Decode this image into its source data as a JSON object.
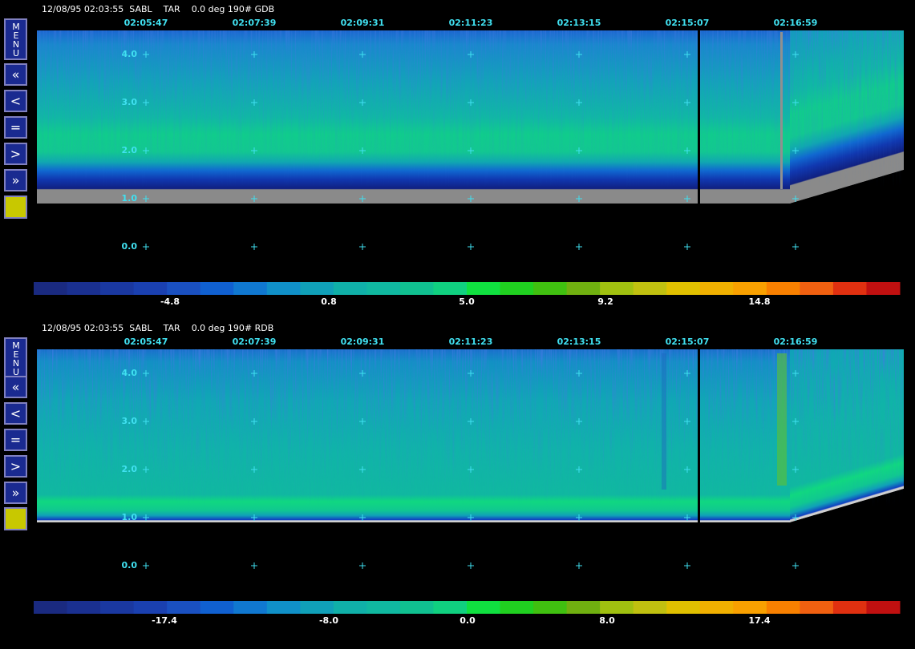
{
  "panels": [
    {
      "header": "12/08/95 02:03:55  SABL    TAR    0.0 deg 190# GDB",
      "times": [
        "02:05:47",
        "02:07:39",
        "02:09:31",
        "02:11:23",
        "02:13:15",
        "02:15:07",
        "02:16:59"
      ],
      "altitudes": [
        "4.0",
        "3.0",
        "2.0",
        "1.0",
        "0.0"
      ],
      "menu": "MENU",
      "buttons": [
        "«",
        "<",
        "=",
        ">",
        "»"
      ],
      "scale": [
        "-4.8",
        "0.8",
        "5.0",
        "9.2",
        "14.8"
      ]
    },
    {
      "header": "12/08/95 02:03:55  SABL    TAR    0.0 deg 190# RDB",
      "times": [
        "02:05:47",
        "02:07:39",
        "02:09:31",
        "02:11:23",
        "02:13:15",
        "02:15:07",
        "02:16:59"
      ],
      "altitudes": [
        "4.0",
        "3.0",
        "2.0",
        "1.0",
        "0.0"
      ],
      "menu": "MENU",
      "buttons": [
        "«",
        "<",
        "=",
        ">",
        "»"
      ],
      "scale": [
        "-17.4",
        "-8.0",
        "0.0",
        "8.0",
        "17.4"
      ]
    }
  ]
}
